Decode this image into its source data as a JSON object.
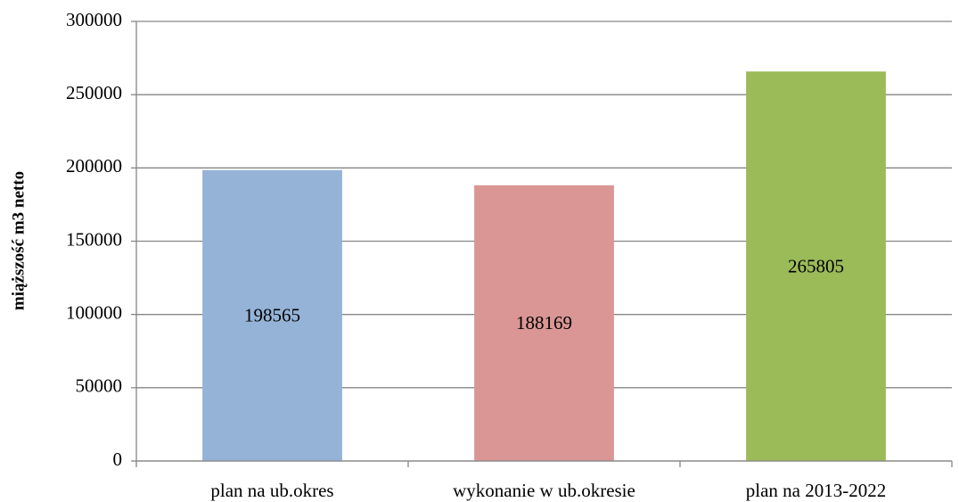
{
  "chart_data": {
    "type": "bar",
    "y_label": "miąższość m3 netto",
    "categories": [
      "plan na ub.okres",
      "wykonanie w ub.okresie",
      "plan na 2013-2022"
    ],
    "values": [
      198565,
      188169,
      265805
    ],
    "colors": [
      "#95b3d7",
      "#d99694",
      "#9bbb59"
    ],
    "ylim": [
      0,
      300000
    ],
    "yticks": [
      0,
      50000,
      100000,
      150000,
      200000,
      250000,
      300000
    ],
    "grid": true
  }
}
